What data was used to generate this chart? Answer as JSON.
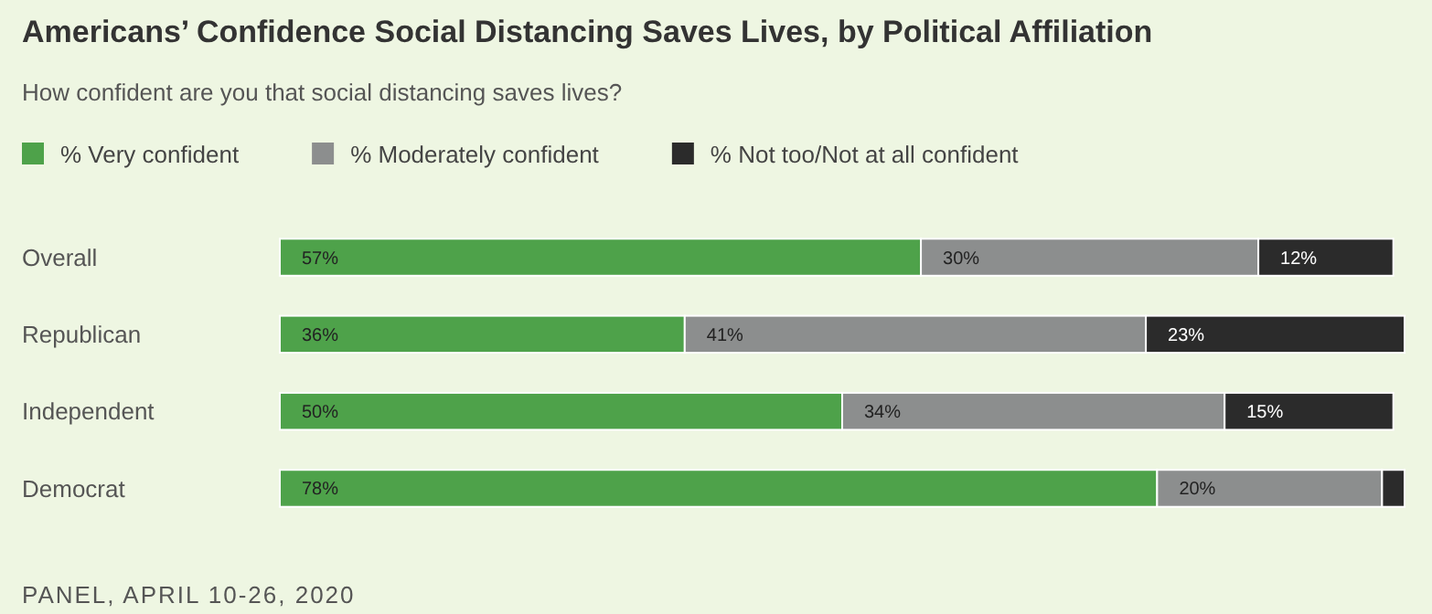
{
  "chart_data": {
    "type": "bar",
    "orientation": "horizontal",
    "stacked": true,
    "title": "Americans’ Confidence Social Distancing Saves Lives, by Political Affiliation",
    "subtitle": "How confident are you that social distancing saves lives?",
    "categories": [
      "Overall",
      "Republican",
      "Independent",
      "Democrat"
    ],
    "series": [
      {
        "name": "% Very confident",
        "color": "#4ea24a",
        "values": [
          57,
          36,
          50,
          78
        ],
        "value_labels": [
          "57%",
          "36%",
          "50%",
          "78%"
        ]
      },
      {
        "name": "% Moderately confident",
        "color": "#8c8e8e",
        "values": [
          30,
          41,
          34,
          20
        ],
        "value_labels": [
          "30%",
          "41%",
          "34%",
          "20%"
        ]
      },
      {
        "name": "% Not too/Not at all confident",
        "color": "#2b2b2b",
        "values": [
          12,
          23,
          15,
          2
        ],
        "value_labels": [
          "12%",
          "23%",
          "15%",
          null
        ]
      }
    ],
    "legend": "top left",
    "annotations": [
      "PANEL, APRIL 10-26, 2020"
    ]
  }
}
